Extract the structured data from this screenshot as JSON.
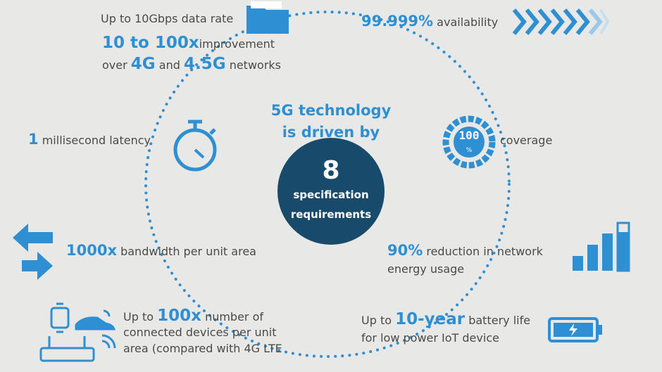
{
  "center": {
    "title": [
      "5G technology",
      "is driven by"
    ],
    "number": "8",
    "subtitle": [
      "specification",
      "requirements"
    ]
  },
  "items": [
    {
      "lines": [
        [
          "Up to 10Gbps data rate"
        ],
        [
          "10 to 100x",
          "improvement"
        ],
        [
          "over",
          "4G",
          "and",
          "4.5G",
          "networks"
        ]
      ]
    },
    {
      "lines": [
        [
          "99.999%",
          "availability"
        ]
      ]
    },
    {
      "lines": [
        [
          "1",
          "millisecond latency"
        ]
      ]
    },
    {
      "icon": [
        "100",
        "%"
      ],
      "lines": [
        [
          "coverage"
        ]
      ]
    },
    {
      "lines": [
        [
          "1000x",
          "bandwidth per unit area"
        ]
      ]
    },
    {
      "lines": [
        [
          "90%",
          "reduction in network"
        ],
        [
          "energy usage"
        ]
      ]
    },
    {
      "lines": [
        [
          "Up to",
          "100x",
          "number of"
        ],
        [
          "connected devices per unit"
        ],
        [
          "area (compared with 4G LTE"
        ]
      ]
    },
    {
      "lines": [
        [
          "Up to",
          "10-year",
          "battery life"
        ],
        [
          "for low power IoT device"
        ]
      ]
    }
  ]
}
